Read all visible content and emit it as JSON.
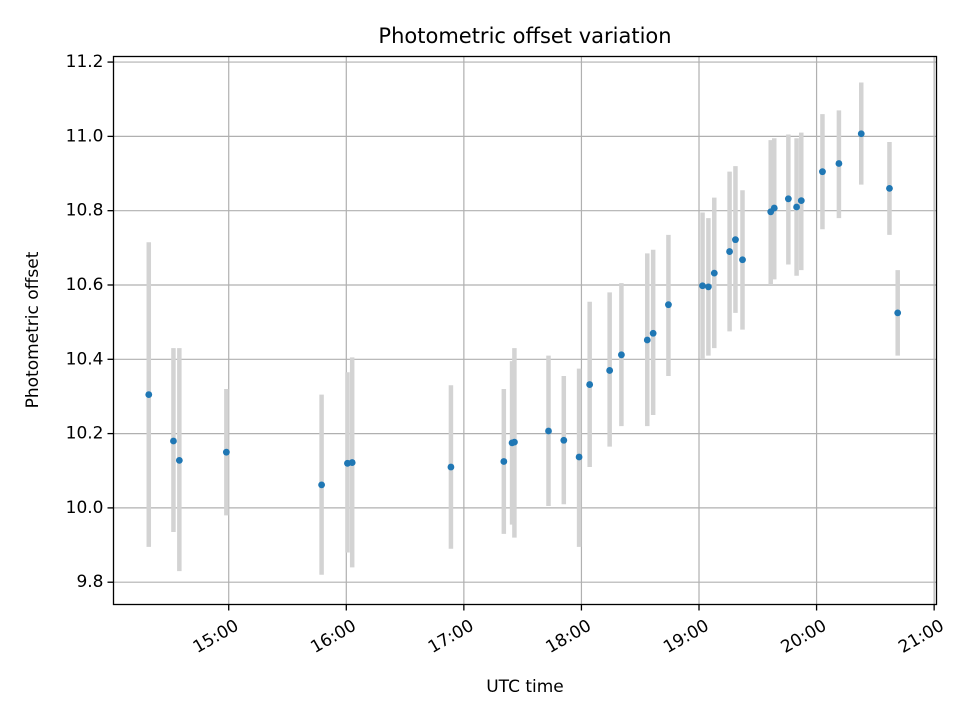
{
  "chart_data": {
    "type": "scatter",
    "title": "Photometric offset variation",
    "xlabel": "UTC time",
    "ylabel": "Photometric offset",
    "xlim": [
      14.02,
      21.02
    ],
    "ylim": [
      9.74,
      11.215
    ],
    "grid": true,
    "x_ticks": [
      15,
      16,
      17,
      18,
      19,
      20,
      21
    ],
    "x_tick_labels": [
      "15:00",
      "16:00",
      "17:00",
      "18:00",
      "19:00",
      "20:00",
      "21:00"
    ],
    "y_ticks": [
      9.8,
      10.0,
      10.2,
      10.4,
      10.6,
      10.8,
      11.0,
      11.2
    ],
    "y_tick_labels": [
      "9.8",
      "10.0",
      "10.2",
      "10.4",
      "10.6",
      "10.8",
      "11.0",
      "11.2"
    ],
    "point_color": "#1f77b4",
    "errorbar_color": "#d3d3d3",
    "series": [
      {
        "name": "offset",
        "points": [
          {
            "x": 14.32,
            "y": 10.305,
            "lo": 9.895,
            "hi": 10.715
          },
          {
            "x": 14.53,
            "y": 10.18,
            "lo": 9.935,
            "hi": 10.43
          },
          {
            "x": 14.58,
            "y": 10.128,
            "lo": 9.83,
            "hi": 10.43
          },
          {
            "x": 14.98,
            "y": 10.15,
            "lo": 9.98,
            "hi": 10.32
          },
          {
            "x": 15.79,
            "y": 10.062,
            "lo": 9.82,
            "hi": 10.305
          },
          {
            "x": 16.01,
            "y": 10.12,
            "lo": 9.88,
            "hi": 10.365
          },
          {
            "x": 16.05,
            "y": 10.122,
            "lo": 9.84,
            "hi": 10.405
          },
          {
            "x": 16.89,
            "y": 10.11,
            "lo": 9.89,
            "hi": 10.33
          },
          {
            "x": 17.34,
            "y": 10.125,
            "lo": 9.93,
            "hi": 10.32
          },
          {
            "x": 17.41,
            "y": 10.175,
            "lo": 9.955,
            "hi": 10.395
          },
          {
            "x": 17.43,
            "y": 10.177,
            "lo": 9.92,
            "hi": 10.43
          },
          {
            "x": 17.72,
            "y": 10.207,
            "lo": 10.005,
            "hi": 10.41
          },
          {
            "x": 17.85,
            "y": 10.182,
            "lo": 10.01,
            "hi": 10.355
          },
          {
            "x": 17.98,
            "y": 10.137,
            "lo": 9.895,
            "hi": 10.375
          },
          {
            "x": 18.07,
            "y": 10.332,
            "lo": 10.11,
            "hi": 10.555
          },
          {
            "x": 18.24,
            "y": 10.37,
            "lo": 10.165,
            "hi": 10.58
          },
          {
            "x": 18.34,
            "y": 10.412,
            "lo": 10.22,
            "hi": 10.605
          },
          {
            "x": 18.56,
            "y": 10.452,
            "lo": 10.22,
            "hi": 10.685
          },
          {
            "x": 18.61,
            "y": 10.47,
            "lo": 10.25,
            "hi": 10.695
          },
          {
            "x": 18.74,
            "y": 10.547,
            "lo": 10.355,
            "hi": 10.735
          },
          {
            "x": 19.03,
            "y": 10.598,
            "lo": 10.4,
            "hi": 10.795
          },
          {
            "x": 19.08,
            "y": 10.595,
            "lo": 10.41,
            "hi": 10.78
          },
          {
            "x": 19.13,
            "y": 10.632,
            "lo": 10.43,
            "hi": 10.835
          },
          {
            "x": 19.26,
            "y": 10.69,
            "lo": 10.475,
            "hi": 10.905
          },
          {
            "x": 19.31,
            "y": 10.722,
            "lo": 10.525,
            "hi": 10.92
          },
          {
            "x": 19.37,
            "y": 10.668,
            "lo": 10.48,
            "hi": 10.855
          },
          {
            "x": 19.61,
            "y": 10.797,
            "lo": 10.6,
            "hi": 10.99
          },
          {
            "x": 19.64,
            "y": 10.807,
            "lo": 10.615,
            "hi": 10.995
          },
          {
            "x": 19.76,
            "y": 10.832,
            "lo": 10.655,
            "hi": 11.005
          },
          {
            "x": 19.83,
            "y": 10.81,
            "lo": 10.625,
            "hi": 10.995
          },
          {
            "x": 19.87,
            "y": 10.827,
            "lo": 10.64,
            "hi": 11.01
          },
          {
            "x": 20.05,
            "y": 10.905,
            "lo": 10.75,
            "hi": 11.06
          },
          {
            "x": 20.19,
            "y": 10.927,
            "lo": 10.78,
            "hi": 11.07
          },
          {
            "x": 20.38,
            "y": 11.007,
            "lo": 10.87,
            "hi": 11.145
          },
          {
            "x": 20.62,
            "y": 10.86,
            "lo": 10.735,
            "hi": 10.985
          },
          {
            "x": 20.69,
            "y": 10.525,
            "lo": 10.41,
            "hi": 10.64
          }
        ]
      }
    ]
  }
}
